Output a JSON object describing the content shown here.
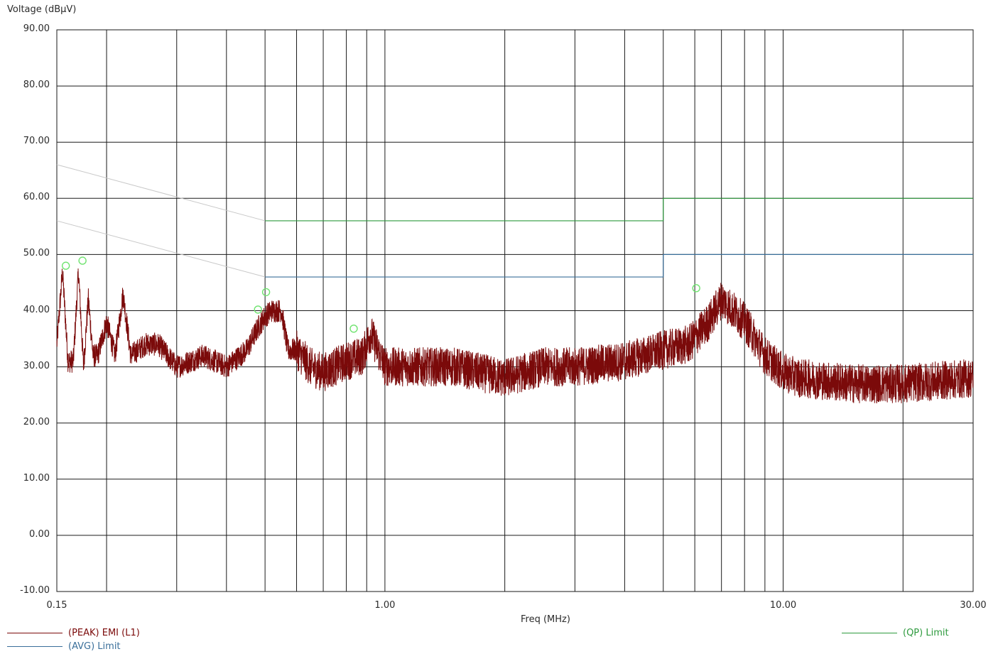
{
  "chart_data": {
    "type": "line",
    "xlabel": "Freq (MHz)",
    "ylabel": "Voltage (dBµV)",
    "xscale": "log",
    "xlim": [
      0.15,
      30
    ],
    "ylim": [
      -10,
      90
    ],
    "grid": true,
    "y_ticks": [
      "90.00",
      "80.00",
      "70.00",
      "60.00",
      "50.00",
      "40.00",
      "30.00",
      "20.00",
      "10.00",
      "0.00",
      "-10.00"
    ],
    "x_ticks": [
      {
        "value": 0.15,
        "label": "0.15"
      },
      {
        "value": 1,
        "label": "1.00"
      },
      {
        "value": 10,
        "label": "10.00"
      },
      {
        "value": 30,
        "label": "30.00"
      }
    ],
    "x_gridlines": [
      0.2,
      0.3,
      0.4,
      0.5,
      0.6,
      0.7,
      0.8,
      0.9,
      1,
      2,
      3,
      4,
      5,
      6,
      7,
      8,
      9,
      10,
      20
    ],
    "series": [
      {
        "name": "(PEAK) EMI (L1)",
        "color": "#7b0a0a",
        "kind": "noisy",
        "envelope": [
          [
            0.15,
            34
          ],
          [
            0.155,
            47
          ],
          [
            0.16,
            31
          ],
          [
            0.165,
            31
          ],
          [
            0.17,
            47
          ],
          [
            0.175,
            30
          ],
          [
            0.18,
            42
          ],
          [
            0.185,
            32
          ],
          [
            0.19,
            32
          ],
          [
            0.2,
            38
          ],
          [
            0.21,
            32
          ],
          [
            0.22,
            43
          ],
          [
            0.23,
            32
          ],
          [
            0.25,
            34
          ],
          [
            0.27,
            34
          ],
          [
            0.3,
            30
          ],
          [
            0.35,
            32
          ],
          [
            0.4,
            30
          ],
          [
            0.45,
            33
          ],
          [
            0.48,
            37
          ],
          [
            0.5,
            39
          ],
          [
            0.52,
            40
          ],
          [
            0.55,
            40
          ],
          [
            0.57,
            33
          ],
          [
            0.6,
            33
          ],
          [
            0.65,
            30
          ],
          [
            0.7,
            29
          ],
          [
            0.8,
            31
          ],
          [
            0.88,
            32
          ],
          [
            0.92,
            36
          ],
          [
            1.0,
            30
          ],
          [
            1.5,
            30
          ],
          [
            2.0,
            28
          ],
          [
            2.5,
            30
          ],
          [
            3.0,
            30
          ],
          [
            4.0,
            31
          ],
          [
            5.0,
            33
          ],
          [
            5.8,
            34
          ],
          [
            6.5,
            38
          ],
          [
            7.0,
            42
          ],
          [
            7.5,
            40
          ],
          [
            8.0,
            38
          ],
          [
            8.5,
            35
          ],
          [
            9.0,
            32
          ],
          [
            10.0,
            29
          ],
          [
            11.0,
            28
          ],
          [
            15.0,
            27
          ],
          [
            20.0,
            27
          ],
          [
            30.0,
            28
          ]
        ],
        "noise_db": 3.5
      },
      {
        "name": "(QP) Limit",
        "color": "#2e9a3e",
        "points": [
          [
            0.15,
            66
          ],
          [
            0.5,
            56
          ],
          [
            5.0,
            56
          ],
          [
            5.0,
            60
          ],
          [
            30,
            60
          ]
        ]
      },
      {
        "name": "(AVG) Limit",
        "color": "#3a6f9a",
        "points": [
          [
            0.15,
            56
          ],
          [
            0.5,
            46
          ],
          [
            5.0,
            46
          ],
          [
            5.0,
            50
          ],
          [
            30,
            50
          ]
        ]
      }
    ],
    "markers": [
      {
        "x": 0.158,
        "y": 48.0
      },
      {
        "x": 0.174,
        "y": 48.9
      },
      {
        "x": 0.48,
        "y": 40.2
      },
      {
        "x": 0.503,
        "y": 43.3
      },
      {
        "x": 0.835,
        "y": 36.8
      },
      {
        "x": 6.05,
        "y": 44.0
      }
    ],
    "marker_color": "#6fe36f"
  },
  "legend": [
    {
      "label": "(PEAK) EMI (L1)",
      "color": "#7b0a0a"
    },
    {
      "label": "(AVG) Limit",
      "color": "#3a6f9a"
    },
    {
      "label": "(QP) Limit",
      "color": "#2e9a3e"
    }
  ]
}
